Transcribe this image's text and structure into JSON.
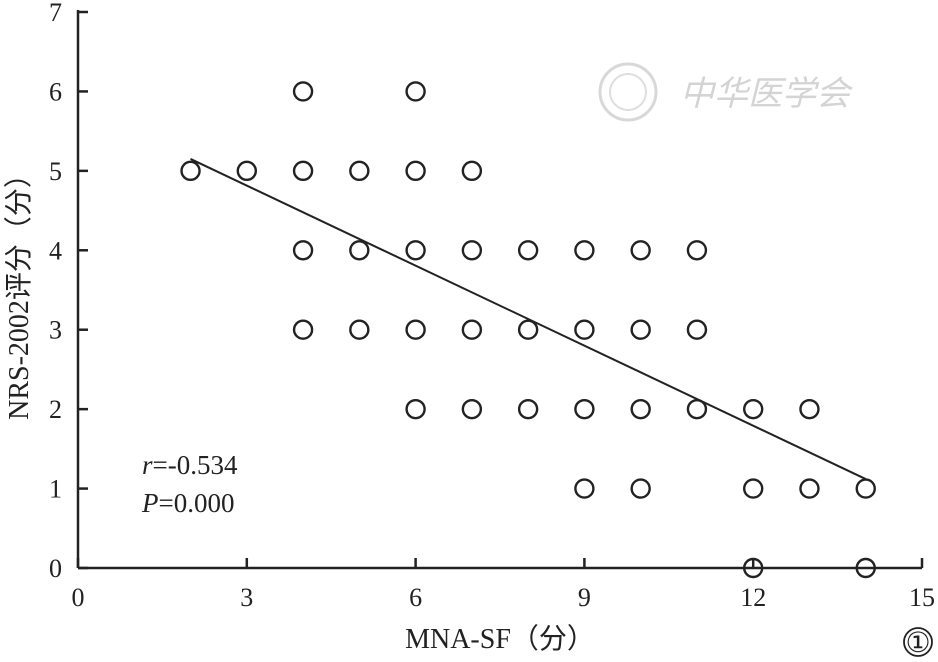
{
  "chart_data": {
    "type": "scatter",
    "title": "",
    "xlabel": "MNA-SF（分）",
    "ylabel": "NRS-2002评分（分）",
    "xlim": [
      0,
      15
    ],
    "ylim": [
      0,
      7
    ],
    "xticks": [
      0,
      3,
      6,
      9,
      12,
      15
    ],
    "yticks": [
      0,
      1,
      2,
      3,
      4,
      5,
      6,
      7
    ],
    "grid": false,
    "points": [
      {
        "x": 2,
        "y": 5
      },
      {
        "x": 3,
        "y": 5
      },
      {
        "x": 4,
        "y": 5
      },
      {
        "x": 5,
        "y": 5
      },
      {
        "x": 6,
        "y": 5
      },
      {
        "x": 7,
        "y": 5
      },
      {
        "x": 4,
        "y": 6
      },
      {
        "x": 6,
        "y": 6
      },
      {
        "x": 4,
        "y": 4
      },
      {
        "x": 5,
        "y": 4
      },
      {
        "x": 6,
        "y": 4
      },
      {
        "x": 7,
        "y": 4
      },
      {
        "x": 8,
        "y": 4
      },
      {
        "x": 9,
        "y": 4
      },
      {
        "x": 10,
        "y": 4
      },
      {
        "x": 11,
        "y": 4
      },
      {
        "x": 4,
        "y": 3
      },
      {
        "x": 5,
        "y": 3
      },
      {
        "x": 6,
        "y": 3
      },
      {
        "x": 7,
        "y": 3
      },
      {
        "x": 8,
        "y": 3
      },
      {
        "x": 9,
        "y": 3
      },
      {
        "x": 10,
        "y": 3
      },
      {
        "x": 11,
        "y": 3
      },
      {
        "x": 6,
        "y": 2
      },
      {
        "x": 7,
        "y": 2
      },
      {
        "x": 8,
        "y": 2
      },
      {
        "x": 9,
        "y": 2
      },
      {
        "x": 10,
        "y": 2
      },
      {
        "x": 11,
        "y": 2
      },
      {
        "x": 12,
        "y": 2
      },
      {
        "x": 13,
        "y": 2
      },
      {
        "x": 9,
        "y": 1
      },
      {
        "x": 10,
        "y": 1
      },
      {
        "x": 12,
        "y": 1
      },
      {
        "x": 13,
        "y": 1
      },
      {
        "x": 14,
        "y": 1
      },
      {
        "x": 12,
        "y": 0
      },
      {
        "x": 14,
        "y": 0
      }
    ],
    "trendline": {
      "x": [
        2,
        14
      ],
      "y": [
        5.15,
        1.12
      ]
    },
    "stats": {
      "r_label": "r",
      "r_value": "=-0.534",
      "p_label": "P",
      "p_value": "=0.000"
    }
  },
  "figure_number": "①",
  "watermark_text": "中华医学会"
}
